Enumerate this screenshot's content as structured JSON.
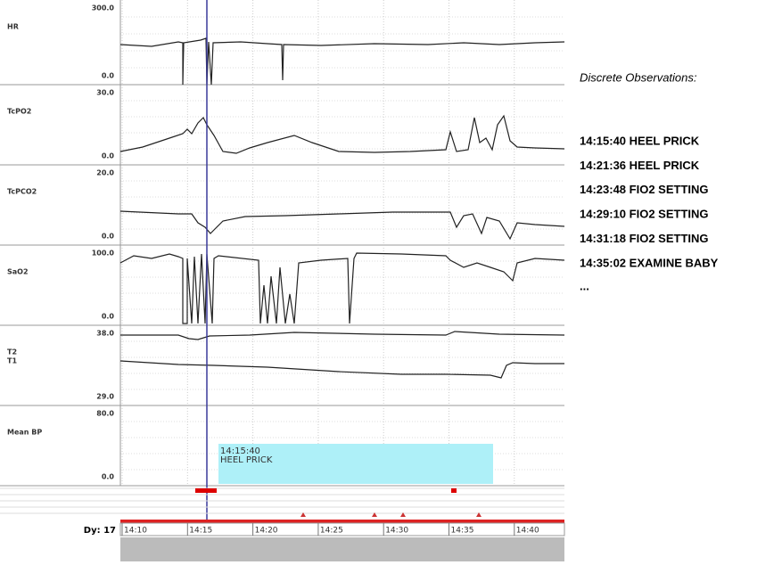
{
  "panels": [
    {
      "labels": [
        "HR"
      ],
      "max": "300.0",
      "min": "0.0"
    },
    {
      "labels": [
        "TcPO2"
      ],
      "max": "30.0",
      "min": "0.0"
    },
    {
      "labels": [
        "TcPCO2"
      ],
      "max": "20.0",
      "min": "0.0"
    },
    {
      "labels": [
        "SaO2"
      ],
      "max": "100.0",
      "min": "0.0"
    },
    {
      "labels": [
        "T2",
        "T1"
      ],
      "max": "38.0",
      "min": "29.0"
    },
    {
      "labels": [
        "Mean BP"
      ],
      "max": "80.0",
      "min": "0.0"
    }
  ],
  "annotation": {
    "time": "14:15:40",
    "text": "HEEL PRICK"
  },
  "timeline": {
    "day": "Dy: 17",
    "ticks": [
      "14:10",
      "14:15",
      "14:20",
      "14:25",
      "14:30",
      "14:35",
      "14:40"
    ]
  },
  "observations": {
    "title": "Discrete Observations:",
    "items": [
      "14:15:40 HEEL PRICK",
      "14:21:36 HEEL PRICK",
      "14:23:48 FIO2 SETTING",
      "14:29:10 FIO2 SETTING",
      "14:31:18 FIO2 SETTING",
      "14:35:02 EXAMINE BABY"
    ],
    "more": "..."
  }
}
